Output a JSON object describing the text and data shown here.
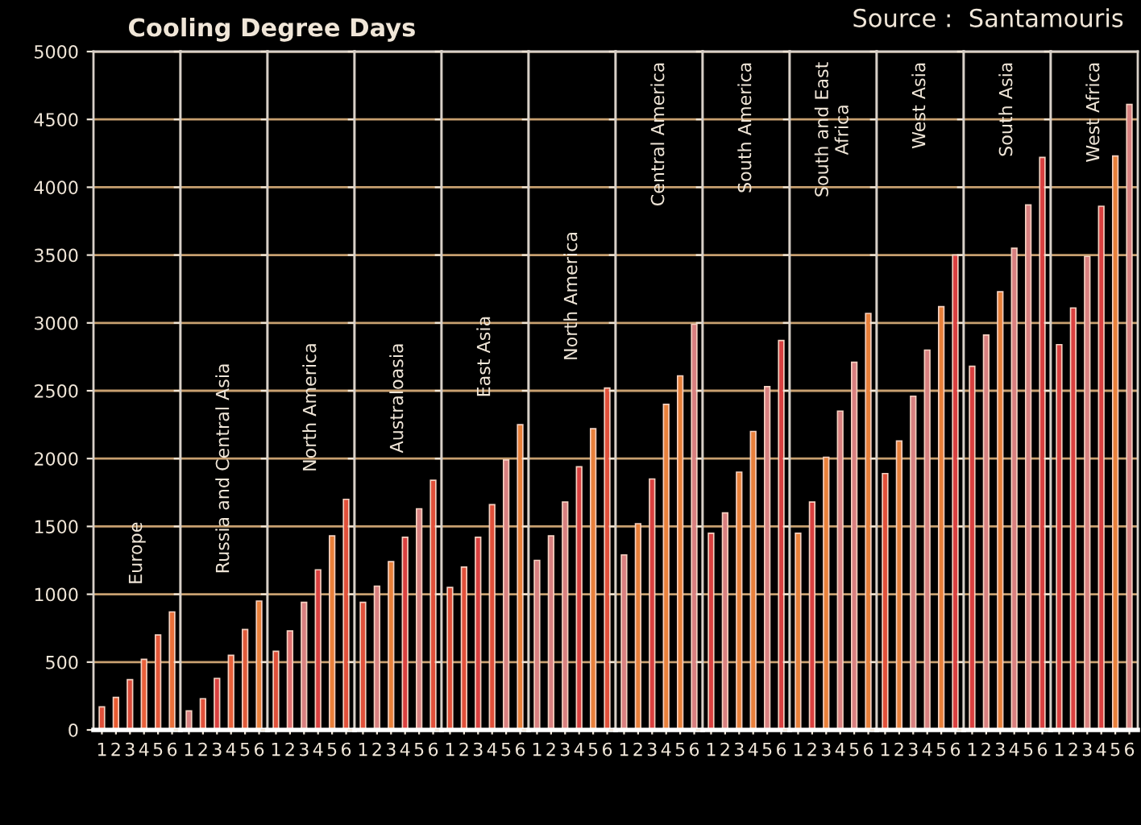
{
  "chart_data": [
    {
      "type": "bar",
      "title": "Cooling Degree Days",
      "categories": [
        "1",
        "2",
        "3",
        "4",
        "5",
        "6"
      ],
      "values": [
        170,
        240,
        370,
        520,
        700,
        870
      ],
      "colors": [
        "#e0503a",
        "#e85a30",
        "#d94a3a",
        "#e8603a",
        "#e4583a",
        "#e8703a"
      ],
      "ylim": [
        0,
        5000
      ],
      "yticks": [
        0,
        500,
        1000,
        1500,
        2000,
        2500,
        3000,
        3500,
        4000,
        4500,
        5000
      ],
      "grid": "y",
      "annotations": [
        "Europe"
      ]
    },
    {
      "type": "bar",
      "categories": [
        "1",
        "2",
        "3",
        "4",
        "5",
        "6"
      ],
      "values": [
        140,
        230,
        380,
        550,
        740,
        950
      ],
      "colors": [
        "#d88080",
        "#e0503a",
        "#d94040",
        "#e8603a",
        "#e05a3a",
        "#e8803a"
      ],
      "ylim": [
        0,
        5000
      ],
      "yticks": [
        0,
        500,
        1000,
        1500,
        2000,
        2500,
        3000,
        3500,
        4000,
        4500,
        5000
      ],
      "tick_labels": "x",
      "grid": "y",
      "annotations": [
        "Russia and Central Asia"
      ]
    },
    {
      "type": "bar",
      "categories": [
        "1",
        "2",
        "3",
        "4",
        "5",
        "6"
      ],
      "values": [
        580,
        730,
        940,
        1180,
        1430,
        1700
      ],
      "colors": [
        "#e0503a",
        "#e07070",
        "#d88080",
        "#d94040",
        "#e8803a",
        "#e0503a"
      ],
      "ylim": [
        0,
        5000
      ],
      "yticks": [
        0,
        500,
        1000,
        1500,
        2000,
        2500,
        3000,
        3500,
        4000,
        4500,
        5000
      ],
      "tick_labels": "x",
      "grid": "y",
      "annotations": [
        "North America"
      ]
    },
    {
      "type": "bar",
      "categories": [
        "1",
        "2",
        "3",
        "4",
        "5",
        "6"
      ],
      "values": [
        940,
        1060,
        1240,
        1420,
        1630,
        1840
      ],
      "colors": [
        "#e0503a",
        "#d88080",
        "#e8803a",
        "#d94040",
        "#d88080",
        "#e0503a"
      ],
      "ylim": [
        0,
        5000
      ],
      "yticks": [
        0,
        500,
        1000,
        1500,
        2000,
        2500,
        3000,
        3500,
        4000,
        4500,
        5000
      ],
      "tick_labels": "x",
      "grid": "y",
      "annotations": [
        "Australoasia"
      ]
    },
    {
      "type": "bar",
      "categories": [
        "1",
        "2",
        "3",
        "4",
        "5",
        "6"
      ],
      "values": [
        1050,
        1200,
        1420,
        1660,
        1990,
        2250
      ],
      "colors": [
        "#e0503a",
        "#e0503a",
        "#d94040",
        "#e0503a",
        "#d88080",
        "#e8803a"
      ],
      "ylim": [
        0,
        5000
      ],
      "yticks": [
        0,
        500,
        1000,
        1500,
        2000,
        2500,
        3000,
        3500,
        4000,
        4500,
        5000
      ],
      "tick_labels": "x",
      "grid": "y",
      "annotations": [
        "East Asia"
      ]
    },
    {
      "type": "bar",
      "categories": [
        "1",
        "2",
        "3",
        "4",
        "5",
        "6"
      ],
      "values": [
        1250,
        1430,
        1680,
        1940,
        2220,
        2520
      ],
      "colors": [
        "#d88080",
        "#d88080",
        "#d88080",
        "#d94040",
        "#e8803a",
        "#e0503a"
      ],
      "ylim": [
        0,
        5000
      ],
      "yticks": [
        0,
        500,
        1000,
        1500,
        2000,
        2500,
        3000,
        3500,
        4000,
        4500,
        5000
      ],
      "tick_labels": "x",
      "grid": "y",
      "annotations": [
        "North America"
      ]
    },
    {
      "type": "bar",
      "categories": [
        "1",
        "2",
        "3",
        "4",
        "5",
        "6"
      ],
      "values": [
        1290,
        1520,
        1850,
        2400,
        2610,
        2990
      ],
      "colors": [
        "#d88080",
        "#e8803a",
        "#d94040",
        "#e8803a",
        "#e8803a",
        "#d88080"
      ],
      "ylim": [
        0,
        5000
      ],
      "yticks": [
        0,
        500,
        1000,
        1500,
        2000,
        2500,
        3000,
        3500,
        4000,
        4500,
        5000
      ],
      "tick_labels": "x",
      "grid": "y",
      "annotations": [
        "Central America"
      ]
    },
    {
      "type": "bar",
      "categories": [
        "1",
        "2",
        "3",
        "4",
        "5",
        "6"
      ],
      "values": [
        1450,
        1600,
        1900,
        2200,
        2530,
        2870
      ],
      "colors": [
        "#d94040",
        "#d88080",
        "#e8803a",
        "#e8803a",
        "#d88080",
        "#d94040"
      ],
      "ylim": [
        0,
        5000
      ],
      "yticks": [
        0,
        500,
        1000,
        1500,
        2000,
        2500,
        3000,
        3500,
        4000,
        4500,
        5000
      ],
      "tick_labels": "x",
      "grid": "y",
      "annotations": [
        "South America"
      ]
    },
    {
      "type": "bar",
      "categories": [
        "1",
        "2",
        "3",
        "4",
        "5",
        "6"
      ],
      "values": [
        1450,
        1680,
        2010,
        2350,
        2710,
        3070
      ],
      "colors": [
        "#e8803a",
        "#d94040",
        "#e8803a",
        "#d88080",
        "#d88080",
        "#e8803a"
      ],
      "ylim": [
        0,
        5000
      ],
      "yticks": [
        0,
        500,
        1000,
        1500,
        2000,
        2500,
        3000,
        3500,
        4000,
        4500,
        5000
      ],
      "tick_labels": "x",
      "grid": "y",
      "annotations": [
        "South and East\nAfrica"
      ]
    },
    {
      "type": "bar",
      "categories": [
        "1",
        "2",
        "3",
        "4",
        "5",
        "6"
      ],
      "values": [
        1890,
        2130,
        2460,
        2800,
        3120,
        3500
      ],
      "colors": [
        "#e0503a",
        "#e8803a",
        "#d88080",
        "#d88080",
        "#e8803a",
        "#d94040"
      ],
      "ylim": [
        0,
        5000
      ],
      "yticks": [
        0,
        500,
        1000,
        1500,
        2000,
        2500,
        3000,
        3500,
        4000,
        4500,
        5000
      ],
      "tick_labels": "x",
      "grid": "y",
      "annotations": [
        "West Asia"
      ]
    },
    {
      "type": "bar",
      "categories": [
        "1",
        "2",
        "3",
        "4",
        "5",
        "6"
      ],
      "values": [
        2680,
        2910,
        3230,
        3550,
        3870,
        4220
      ],
      "colors": [
        "#d94040",
        "#d88080",
        "#e8803a",
        "#d88080",
        "#d88080",
        "#d94040"
      ],
      "ylim": [
        0,
        5000
      ],
      "yticks": [
        0,
        500,
        1000,
        1500,
        2000,
        2500,
        3000,
        3500,
        4000,
        4500,
        5000
      ],
      "tick_labels": "x",
      "grid": "y",
      "annotations": [
        "South Asia"
      ]
    },
    {
      "type": "bar",
      "categories": [
        "1",
        "2",
        "3",
        "4",
        "5",
        "6"
      ],
      "values": [
        2840,
        3110,
        3490,
        3860,
        4230,
        4610
      ],
      "colors": [
        "#d94040",
        "#d94040",
        "#d88080",
        "#d94040",
        "#e8803a",
        "#d88080"
      ],
      "ylim": [
        0,
        5000
      ],
      "yticks": [
        0,
        500,
        1000,
        1500,
        2000,
        2500,
        3000,
        3500,
        4000,
        4500,
        5000
      ],
      "tick_labels": "x",
      "grid": "y",
      "annotations": [
        "West Africa",
        "Source :  Santamouris"
      ]
    }
  ]
}
